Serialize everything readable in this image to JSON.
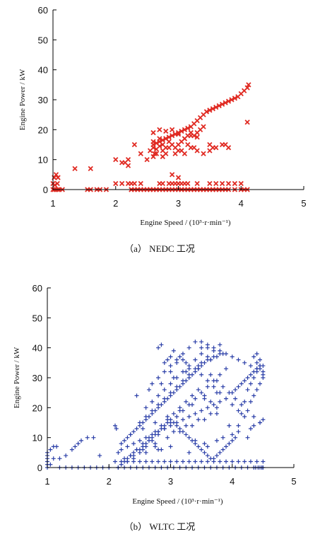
{
  "chart_data": [
    {
      "type": "scatter",
      "caption": "（a） NEDC 工况",
      "xlabel": "Engine Speed / (10³·r·min⁻¹)",
      "ylabel": "Engine Power / kW",
      "xlim": [
        1,
        5
      ],
      "ylim": [
        0,
        60
      ],
      "xticks": [
        1,
        2,
        3,
        4,
        5
      ],
      "yticks": [
        0,
        10,
        20,
        30,
        40,
        50,
        60
      ],
      "grid": false,
      "marker": "x",
      "color": "#e02a22",
      "series": [
        {
          "x": [
            1.0,
            1.02,
            1.05,
            1.08,
            1.1,
            1.15,
            1.02,
            1.05,
            1.08,
            1.0,
            1.03,
            1.07,
            1.35,
            1.6,
            1.55,
            1.6,
            1.7,
            1.75,
            1.85,
            2.0,
            2.1,
            2.15,
            2.2,
            2.25,
            2.25,
            2.3,
            2.35,
            2.4,
            2.45,
            2.5,
            2.55,
            2.6,
            2.65,
            2.7,
            2.75,
            2.8,
            2.85,
            2.9,
            2.95,
            3.0,
            3.05,
            3.1,
            3.15,
            3.2,
            3.25,
            3.3,
            3.35,
            3.4,
            3.45,
            3.5,
            3.55,
            3.6,
            3.65,
            3.7,
            3.75,
            3.8,
            3.9,
            4.0,
            4.05,
            4.1,
            2.6,
            2.65,
            2.7,
            2.75,
            2.8,
            2.85,
            2.9,
            2.95,
            3.0,
            3.05,
            3.1,
            3.15,
            3.2,
            3.25,
            3.3,
            3.35,
            3.4,
            3.45,
            3.5,
            3.55,
            3.6,
            3.65,
            3.7,
            3.75,
            3.8,
            3.85,
            3.9,
            3.95,
            4.0,
            4.05,
            4.1,
            4.12,
            2.55,
            2.6,
            2.65,
            2.7,
            2.75,
            2.8,
            2.85,
            2.9,
            2.95,
            3.0,
            3.05,
            3.1,
            3.15,
            3.2,
            3.25,
            3.3,
            3.35,
            3.4,
            2.6,
            2.7,
            2.8,
            2.9,
            3.0,
            3.1,
            3.2,
            3.3,
            2.65,
            2.75,
            2.85,
            2.95,
            3.05,
            3.15,
            3.25,
            2.6,
            2.62,
            2.75,
            2.8,
            3.0,
            3.1,
            3.2,
            3.3,
            3.4,
            3.5,
            3.6,
            3.7,
            3.75,
            2.0,
            2.1,
            2.2,
            2.3,
            2.4,
            2.7,
            2.9,
            3.1,
            3.15,
            2.75,
            2.85,
            3.0,
            2.95,
            3.05,
            2.9,
            3.0,
            4.1,
            3.8,
            3.55,
            3.5,
            2.6,
            2.7,
            2.8,
            2.2,
            2.5,
            2.4,
            2.3,
            3.0,
            3.3,
            3.5,
            3.6,
            3.7,
            3.8,
            3.9,
            4.0,
            2.25,
            2.35,
            2.55,
            2.65,
            3.05,
            3.15,
            3.25,
            3.35,
            3.45,
            3.55,
            3.65
          ],
          "y": [
            0,
            0,
            0,
            0,
            0,
            0,
            4,
            5,
            4,
            2,
            1.5,
            2,
            7,
            7,
            0,
            0,
            0,
            0,
            0,
            10,
            9,
            9,
            10,
            2,
            0,
            0,
            0,
            0,
            0,
            0,
            0,
            0,
            0,
            0,
            0,
            0,
            0,
            0,
            0,
            0,
            0,
            0,
            0,
            0,
            0,
            0,
            0,
            0,
            0,
            0,
            0,
            0,
            0,
            0,
            0,
            0,
            0,
            0,
            0,
            0,
            15,
            15.5,
            16,
            16.5,
            17,
            17.5,
            18,
            18.5,
            19,
            19.5,
            20,
            20.5,
            21,
            22,
            23,
            24,
            25,
            26,
            26.5,
            27,
            27.5,
            28,
            28.5,
            29,
            29.5,
            30,
            30.5,
            31,
            32,
            33,
            34,
            35,
            13,
            14,
            13.5,
            14.5,
            15,
            14,
            16,
            15,
            14,
            15,
            16,
            17,
            18,
            19,
            18,
            19,
            20,
            21,
            19,
            20,
            19.5,
            20,
            18.5,
            17,
            18,
            17.5,
            12,
            13,
            14,
            12,
            13,
            15,
            14,
            11,
            12,
            11,
            12,
            13,
            12,
            14,
            13,
            12,
            13,
            14,
            15,
            15,
            2,
            2,
            2,
            2,
            2,
            2,
            2,
            2,
            2,
            2,
            2,
            2,
            2,
            2,
            5,
            4,
            22.5,
            14,
            14,
            15,
            16,
            17,
            17,
            8,
            10,
            12,
            15,
            2,
            2,
            2,
            2,
            2,
            2,
            2,
            2,
            0,
            0,
            0,
            0,
            0,
            0,
            0,
            0,
            0,
            0,
            0
          ]
        }
      ]
    },
    {
      "type": "scatter",
      "caption": "（b） WLTC 工况",
      "xlabel": "Engine Speed / (10³·r·min⁻¹)",
      "ylabel": "Engine Power / kW",
      "xlim": [
        1,
        5
      ],
      "ylim": [
        0,
        60
      ],
      "xticks": [
        1,
        2,
        3,
        4,
        5
      ],
      "yticks": [
        0,
        10,
        20,
        30,
        40,
        50,
        60
      ],
      "grid": false,
      "marker": "+",
      "color": "#2b3fa8",
      "series": [
        {
          "x": [
            1.0,
            1.0,
            1.0,
            1.0,
            1.0,
            1.0,
            1.05,
            1.1,
            1.15,
            1.2,
            1.3,
            1.4,
            1.5,
            1.6,
            1.7,
            1.8,
            1.9,
            2.0,
            1.05,
            1.1,
            1.2,
            1.3,
            1.4,
            1.45,
            1.5,
            1.55,
            1.65,
            1.75,
            1.85,
            2.1,
            2.12,
            2.15,
            2.2,
            2.25,
            2.3,
            2.35,
            2.4,
            2.45,
            2.5,
            2.55,
            2.6,
            2.65,
            2.7,
            2.75,
            2.8,
            2.85,
            2.9,
            2.95,
            3.0,
            3.05,
            3.1,
            3.15,
            3.2,
            3.25,
            3.3,
            3.35,
            3.4,
            3.45,
            3.5,
            3.55,
            3.6,
            3.65,
            3.7,
            3.75,
            3.8,
            3.85,
            3.9,
            3.95,
            4.0,
            4.05,
            4.1,
            4.15,
            4.2,
            4.25,
            4.3,
            4.35,
            4.4,
            4.45,
            2.2,
            2.25,
            2.3,
            2.35,
            2.4,
            2.45,
            2.5,
            2.55,
            2.6,
            2.65,
            2.7,
            2.75,
            2.8,
            2.85,
            2.9,
            2.95,
            3.0,
            3.05,
            3.1,
            3.15,
            3.2,
            3.25,
            3.3,
            3.35,
            3.4,
            3.45,
            3.5,
            3.55,
            3.6,
            3.65,
            3.7,
            3.75,
            3.8,
            2.15,
            2.2,
            2.3,
            2.4,
            2.5,
            2.6,
            2.7,
            2.8,
            2.9,
            3.0,
            3.1,
            3.2,
            3.3,
            3.4,
            3.5,
            3.6,
            3.7,
            3.8,
            2.25,
            2.35,
            2.45,
            2.55,
            2.65,
            2.75,
            2.85,
            2.95,
            3.05,
            3.15,
            3.25,
            3.35,
            3.45,
            3.55,
            3.65,
            3.75,
            2.3,
            2.4,
            2.5,
            2.6,
            2.7,
            2.8,
            2.9,
            3.0,
            3.1,
            3.2,
            3.3,
            3.4,
            3.5,
            3.6,
            3.7,
            3.8,
            3.9,
            2.5,
            2.6,
            2.7,
            2.8,
            2.9,
            3.0,
            3.1,
            3.2,
            3.3,
            3.4,
            3.5,
            3.6,
            3.7,
            3.8,
            2.6,
            2.7,
            2.8,
            2.9,
            3.0,
            3.1,
            3.2,
            3.3,
            3.4,
            3.5,
            3.6,
            2.7,
            2.8,
            2.9,
            3.0,
            3.1,
            3.2,
            3.3,
            3.4,
            3.5,
            3.6,
            3.7,
            3.8,
            3.9,
            4.0,
            4.1,
            4.2,
            4.3,
            4.4,
            2.9,
            2.95,
            3.0,
            3.1,
            3.3,
            3.5,
            3.6,
            3.7,
            3.8,
            3.9,
            4.0,
            4.1,
            4.2,
            2.8,
            2.85,
            3.05,
            3.15,
            3.25,
            3.45,
            3.65,
            3.75,
            3.85,
            3.95,
            4.05,
            4.15,
            4.25,
            4.35,
            4.45,
            4.45,
            4.4,
            4.35,
            4.3,
            4.25,
            4.2,
            4.15,
            4.1,
            4.05,
            4.0,
            4.3,
            4.35,
            4.4,
            4.45,
            4.5,
            4.5,
            4.5,
            4.45,
            4.4,
            4.35,
            4.4,
            4.45,
            4.5,
            2.75,
            2.85,
            3.95,
            4.25,
            3.0,
            3.5,
            3.2,
            3.4,
            3.6,
            2.4,
            2.6,
            2.8,
            3.0,
            3.3,
            3.55,
            3.75,
            3.85,
            4.0,
            4.1,
            4.3,
            4.35,
            4.45,
            4.5,
            2.1,
            2.2,
            2.3,
            2.4,
            2.5,
            2.6,
            2.7,
            2.8,
            2.9,
            3.0,
            3.1,
            3.2,
            3.3,
            3.4,
            3.5,
            3.6,
            3.7,
            3.8,
            3.9,
            4.0,
            4.1,
            4.2,
            4.3,
            4.4,
            4.5,
            2.15,
            2.25,
            2.35,
            2.45,
            2.55,
            2.65,
            2.75,
            2.85,
            2.95,
            3.05,
            3.15,
            3.25,
            3.35,
            3.45,
            3.55,
            3.65,
            3.75,
            3.85,
            3.95,
            4.05,
            4.15,
            4.25,
            4.35,
            4.45,
            4.5,
            4.48,
            4.42,
            4.38,
            3.05,
            3.25,
            3.45,
            3.65,
            2.35,
            2.55,
            2.75,
            2.95,
            3.15,
            3.35,
            3.55,
            3.75,
            2.45,
            2.65,
            2.85,
            3.05,
            3.25,
            3.45,
            3.65,
            3.85,
            2.55,
            2.75,
            2.95,
            3.15,
            3.35,
            3.55,
            3.75
          ],
          "y": [
            0,
            1,
            2,
            3,
            4,
            5,
            6,
            7,
            7,
            0,
            0,
            0,
            0,
            0,
            0,
            0,
            0,
            0,
            1,
            3,
            3,
            4,
            6,
            7,
            8,
            9,
            10,
            10,
            4,
            14,
            13,
            0,
            1,
            2,
            3,
            4,
            5,
            6,
            6,
            7,
            8,
            9,
            10,
            11,
            12,
            13,
            14,
            15,
            16,
            15,
            14,
            13,
            12,
            11,
            10,
            9,
            8,
            7,
            6,
            5,
            4,
            3,
            3,
            4,
            5,
            6,
            7,
            8,
            9,
            10,
            14,
            18,
            22,
            26,
            28,
            30,
            32,
            34,
            8,
            9,
            10,
            11,
            12,
            13,
            14,
            15,
            16,
            17,
            18,
            19,
            20,
            21,
            22,
            23,
            24,
            25,
            26,
            27,
            28,
            29,
            30,
            31,
            32,
            33,
            34,
            35,
            36,
            36,
            37,
            37,
            38,
            5,
            6,
            7,
            8,
            9,
            10,
            11,
            12,
            13,
            14,
            15,
            16,
            17,
            18,
            19,
            20,
            21,
            22,
            3,
            4,
            6,
            8,
            10,
            12,
            14,
            16,
            18,
            20,
            22,
            24,
            26,
            24,
            22,
            20,
            2,
            3,
            5,
            7,
            9,
            11,
            13,
            15,
            17,
            19,
            21,
            23,
            25,
            27,
            29,
            31,
            33,
            15,
            17,
            19,
            21,
            23,
            25,
            27,
            29,
            31,
            33,
            35,
            37,
            39,
            41,
            20,
            22,
            24,
            26,
            28,
            30,
            32,
            34,
            36,
            38,
            40,
            28,
            30,
            32,
            34,
            36,
            38,
            40,
            42,
            42,
            41,
            40,
            39,
            38,
            37,
            36,
            35,
            34,
            33,
            35,
            36,
            37,
            35,
            33,
            31,
            29,
            27,
            25,
            23,
            21,
            19,
            17,
            40,
            41,
            39,
            37,
            35,
            33,
            31,
            29,
            27,
            25,
            23,
            21,
            19,
            17,
            15,
            34,
            33,
            32,
            31,
            30,
            29,
            28,
            27,
            26,
            25,
            22,
            24,
            26,
            28,
            30,
            32,
            34,
            36,
            38,
            37,
            35,
            33,
            31,
            7,
            6,
            14,
            10,
            32,
            40,
            36,
            9,
            7,
            4,
            5,
            6,
            7,
            5,
            8,
            9,
            10,
            11,
            12,
            13,
            14,
            15,
            16,
            2,
            2,
            2,
            2,
            2,
            2,
            2,
            2,
            2,
            2,
            2,
            2,
            2,
            2,
            2,
            2,
            2,
            2,
            2,
            2,
            2,
            2,
            2,
            2,
            2,
            0,
            0,
            0,
            0,
            0,
            0,
            0,
            0,
            0,
            0,
            0,
            0,
            0,
            0,
            0,
            0,
            0,
            0,
            0,
            0,
            0,
            0,
            0,
            0,
            0,
            0,
            0,
            0,
            12,
            14,
            16,
            18,
            11,
            13,
            15,
            17,
            19,
            21,
            23,
            25,
            24,
            26,
            28,
            30,
            32,
            34,
            36,
            38,
            6,
            8,
            10,
            12,
            14,
            16,
            18
          ]
        }
      ]
    }
  ]
}
